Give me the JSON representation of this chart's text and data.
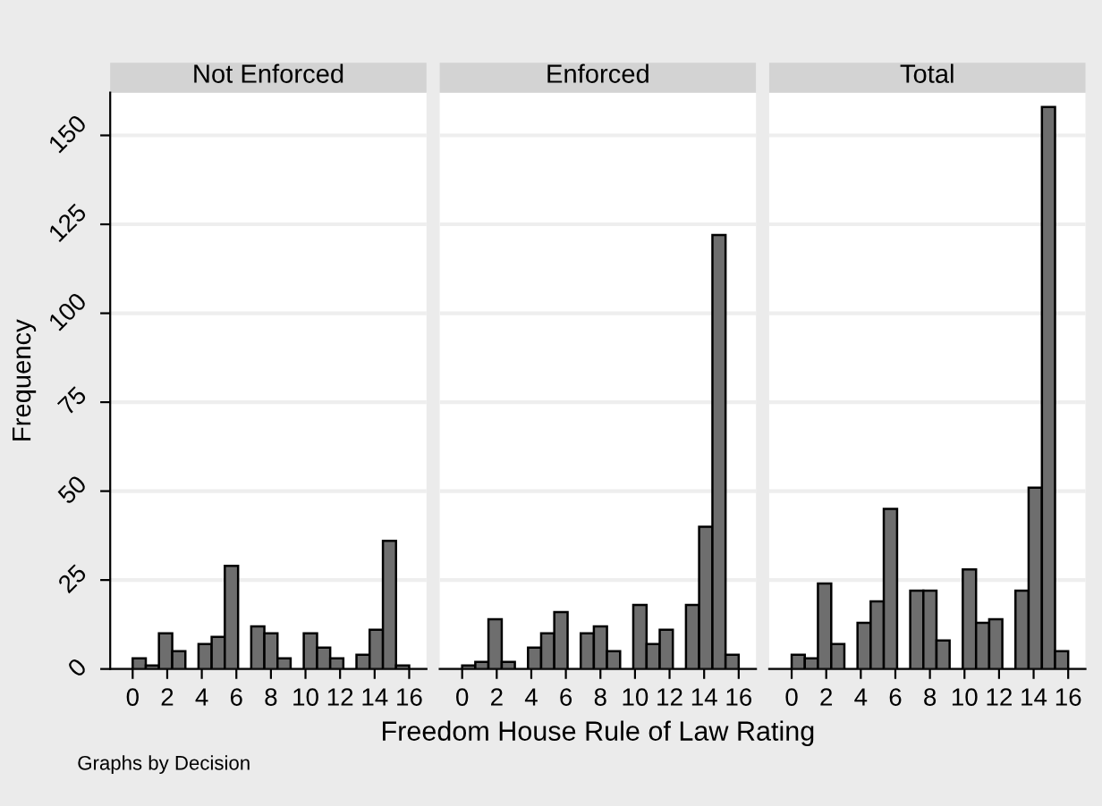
{
  "chart_data": [
    {
      "type": "histogram",
      "title": "Not Enforced",
      "ylabel": "Frequency",
      "annotations": [
        "Graphs by Decision"
      ],
      "bins": [
        0,
        0.76,
        1.52,
        2.29,
        3.05,
        3.81,
        4.57,
        5.33,
        6.1,
        6.86,
        7.62,
        8.38,
        9.14,
        9.9,
        10.67,
        11.43,
        12.19,
        12.95,
        13.71,
        14.48,
        15.24,
        16
      ],
      "values": [
        3,
        1,
        10,
        5,
        0,
        7,
        9,
        29,
        0,
        12,
        10,
        3,
        0,
        10,
        6,
        3,
        0,
        4,
        11,
        36,
        1
      ],
      "color": "#6e6e6e",
      "xlim": [
        -1.3,
        17
      ],
      "ylim": [
        0,
        162
      ],
      "xticks": [
        0,
        2,
        4,
        6,
        8,
        10,
        12,
        14,
        16
      ],
      "yticks": [
        0,
        25,
        50,
        75,
        100,
        125,
        150
      ],
      "grid": "y"
    },
    {
      "type": "histogram",
      "title": "Enforced",
      "xlabel": "Freedom House Rule of Law Rating",
      "bins": [
        0,
        0.76,
        1.52,
        2.29,
        3.05,
        3.81,
        4.57,
        5.33,
        6.1,
        6.86,
        7.62,
        8.38,
        9.14,
        9.9,
        10.67,
        11.43,
        12.19,
        12.95,
        13.71,
        14.48,
        15.24,
        16
      ],
      "values": [
        1,
        2,
        14,
        2,
        0,
        6,
        10,
        16,
        0,
        10,
        12,
        5,
        0,
        18,
        7,
        11,
        0,
        18,
        40,
        122,
        4
      ],
      "color": "#6e6e6e",
      "xlim": [
        -1.3,
        17
      ],
      "ylim": [
        0,
        162
      ],
      "xticks": [
        0,
        2,
        4,
        6,
        8,
        10,
        12,
        14,
        16
      ],
      "yticks": [
        0,
        25,
        50,
        75,
        100,
        125,
        150
      ],
      "grid": "y",
      "tick_labels": "x"
    },
    {
      "type": "histogram",
      "title": "Total",
      "bins": [
        0,
        0.76,
        1.52,
        2.29,
        3.05,
        3.81,
        4.57,
        5.33,
        6.1,
        6.86,
        7.62,
        8.38,
        9.14,
        9.9,
        10.67,
        11.43,
        12.19,
        12.95,
        13.71,
        14.48,
        15.24,
        16
      ],
      "values": [
        4,
        3,
        24,
        7,
        0,
        13,
        19,
        45,
        0,
        22,
        22,
        8,
        0,
        28,
        13,
        14,
        0,
        22,
        51,
        158,
        5
      ],
      "color": "#6e6e6e",
      "xlim": [
        -1.3,
        17
      ],
      "ylim": [
        0,
        162
      ],
      "xticks": [
        0,
        2,
        4,
        6,
        8,
        10,
        12,
        14,
        16
      ],
      "yticks": [
        0,
        25,
        50,
        75,
        100,
        125,
        150
      ],
      "grid": "y",
      "tick_labels": "x"
    }
  ]
}
